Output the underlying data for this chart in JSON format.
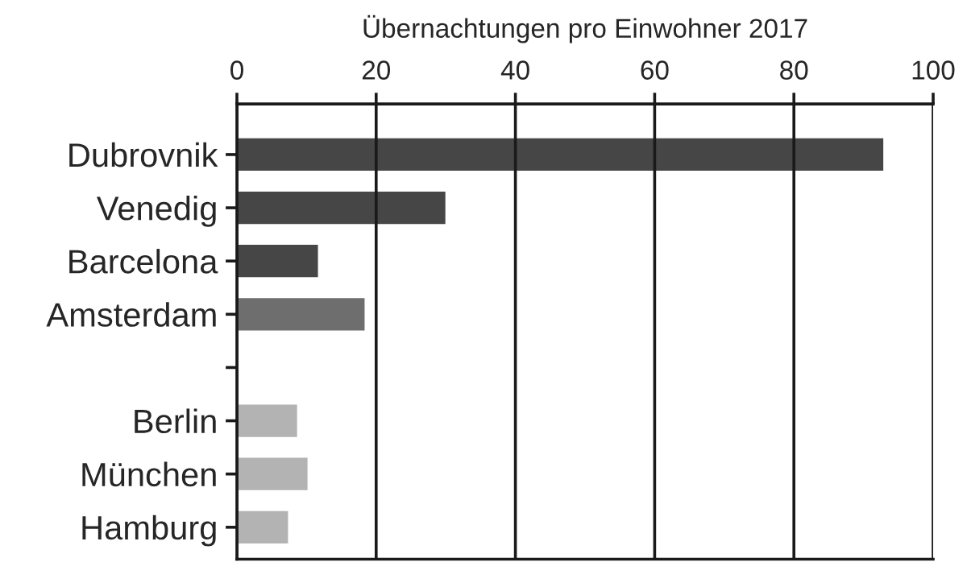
{
  "chart_data": {
    "type": "bar",
    "orientation": "horizontal",
    "xlabel": "Übernachtungen pro Einwohner 2017",
    "categories": [
      "Dubrovnik",
      "Venedig",
      "Barcelona",
      "Amsterdam",
      null,
      "Berlin",
      "München",
      "Hamburg"
    ],
    "values": [
      93,
      30.1,
      11.8,
      18.5,
      null,
      8.8,
      10.3,
      7.5
    ],
    "colors": [
      "#464646",
      "#464646",
      "#464646",
      "#6e6e6e",
      "#b3b3b3",
      "#b3b3b3",
      "#b3b3b3",
      "#b3b3b3"
    ],
    "xlim": [
      0,
      100
    ],
    "xticks": [
      0,
      20,
      40,
      60,
      80,
      100
    ],
    "grid": "x"
  }
}
